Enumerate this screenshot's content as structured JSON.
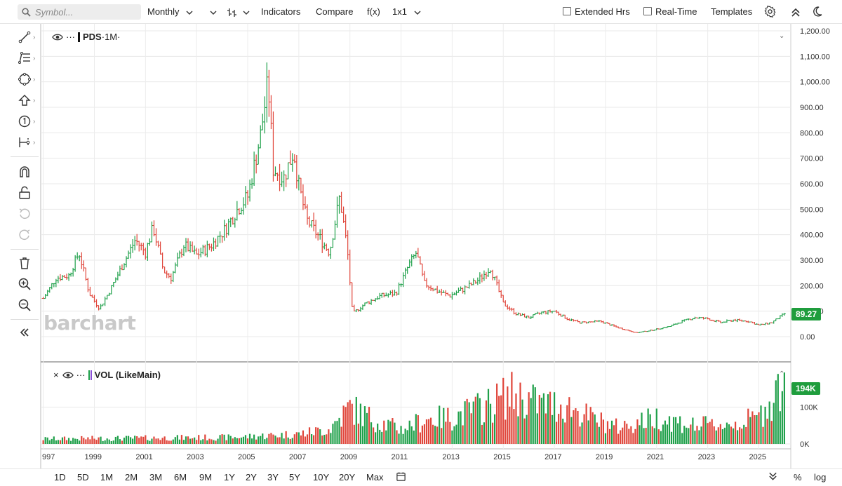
{
  "toolbar": {
    "search_placeholder": "Symbol...",
    "interval": "Monthly",
    "indicators": "Indicators",
    "compare": "Compare",
    "fx": "f(x)",
    "layout": "1x1",
    "extended_hours": "Extended Hrs",
    "real_time": "Real-Time",
    "templates": "Templates"
  },
  "left_tools": [
    {
      "name": "draw-line-icon",
      "has_more": true
    },
    {
      "name": "fib-icon",
      "has_more": true
    },
    {
      "name": "shapes-icon",
      "has_more": true
    },
    {
      "name": "arrow-up-icon",
      "has_more": true
    },
    {
      "name": "annotation-number-icon",
      "has_more": true
    },
    {
      "name": "measure-icon",
      "has_more": true
    },
    {
      "name": "magnet-icon",
      "has_more": false
    },
    {
      "name": "lock-icon",
      "has_more": false
    },
    {
      "name": "undo-icon",
      "has_more": false
    },
    {
      "name": "redo-icon",
      "has_more": false
    },
    {
      "name": "trash-icon",
      "has_more": false
    },
    {
      "name": "zoom-in-icon",
      "has_more": false
    },
    {
      "name": "zoom-out-icon",
      "has_more": false
    },
    {
      "name": "collapse-icon",
      "has_more": false
    }
  ],
  "price_pane": {
    "symbol": "PDS",
    "period": "·1M·",
    "last_price": "89.27",
    "y_ticks": [
      "1,200.00",
      "1,100.00",
      "1,000.00",
      "900.00",
      "800.00",
      "700.00",
      "600.00",
      "500.00",
      "400.00",
      "300.00",
      "200.00",
      "100.00",
      "0.00"
    ]
  },
  "volume_pane": {
    "label": "VOL (LikeMain)",
    "last_volume": "194K",
    "y_ticks": [
      "100K",
      "0K"
    ]
  },
  "x_ticks": [
    "997",
    "1999",
    "2001",
    "2003",
    "2005",
    "2007",
    "2009",
    "2011",
    "2013",
    "2015",
    "2017",
    "2019",
    "2021",
    "2023",
    "2025"
  ],
  "logo": "barchart",
  "ranges": [
    "1D",
    "5D",
    "1M",
    "2M",
    "3M",
    "6M",
    "9M",
    "1Y",
    "2Y",
    "3Y",
    "5Y",
    "10Y",
    "20Y",
    "Max"
  ],
  "bottom_right": {
    "percent": "%",
    "log": "log"
  },
  "colors": {
    "up": "#1fa04a",
    "down": "#e0453a",
    "badge": "#1f9d3d"
  },
  "chart_data": {
    "type": "ohlc",
    "interval": "monthly",
    "ylim": [
      0,
      1200
    ],
    "x_range": [
      "1997",
      "2026"
    ],
    "price_anchors": [
      {
        "t": 1997.0,
        "price": 150
      },
      {
        "t": 1997.5,
        "price": 230
      },
      {
        "t": 1998.0,
        "price": 240
      },
      {
        "t": 1998.4,
        "price": 330
      },
      {
        "t": 1998.8,
        "price": 170
      },
      {
        "t": 1999.2,
        "price": 110
      },
      {
        "t": 1999.6,
        "price": 180
      },
      {
        "t": 2000.0,
        "price": 260
      },
      {
        "t": 2000.6,
        "price": 380
      },
      {
        "t": 2001.0,
        "price": 330
      },
      {
        "t": 2001.3,
        "price": 430
      },
      {
        "t": 2001.7,
        "price": 260
      },
      {
        "t": 2002.0,
        "price": 230
      },
      {
        "t": 2002.5,
        "price": 360
      },
      {
        "t": 2003.0,
        "price": 320
      },
      {
        "t": 2003.6,
        "price": 360
      },
      {
        "t": 2004.1,
        "price": 420
      },
      {
        "t": 2004.6,
        "price": 500
      },
      {
        "t": 2005.0,
        "price": 550
      },
      {
        "t": 2005.5,
        "price": 790
      },
      {
        "t": 2005.8,
        "price": 1000
      },
      {
        "t": 2006.0,
        "price": 660
      },
      {
        "t": 2006.4,
        "price": 620
      },
      {
        "t": 2006.8,
        "price": 730
      },
      {
        "t": 2007.0,
        "price": 590
      },
      {
        "t": 2007.3,
        "price": 460
      },
      {
        "t": 2007.8,
        "price": 390
      },
      {
        "t": 2008.2,
        "price": 330
      },
      {
        "t": 2008.6,
        "price": 550
      },
      {
        "t": 2008.9,
        "price": 340
      },
      {
        "t": 2009.1,
        "price": 90
      },
      {
        "t": 2009.6,
        "price": 130
      },
      {
        "t": 2010.2,
        "price": 160
      },
      {
        "t": 2010.8,
        "price": 170
      },
      {
        "t": 2011.3,
        "price": 280
      },
      {
        "t": 2011.6,
        "price": 330
      },
      {
        "t": 2011.9,
        "price": 210
      },
      {
        "t": 2012.4,
        "price": 180
      },
      {
        "t": 2012.9,
        "price": 160
      },
      {
        "t": 2013.5,
        "price": 190
      },
      {
        "t": 2014.0,
        "price": 220
      },
      {
        "t": 2014.5,
        "price": 270
      },
      {
        "t": 2015.0,
        "price": 130
      },
      {
        "t": 2015.5,
        "price": 90
      },
      {
        "t": 2016.0,
        "price": 75
      },
      {
        "t": 2016.5,
        "price": 95
      },
      {
        "t": 2017.0,
        "price": 100
      },
      {
        "t": 2017.5,
        "price": 70
      },
      {
        "t": 2018.0,
        "price": 55
      },
      {
        "t": 2018.8,
        "price": 60
      },
      {
        "t": 2019.5,
        "price": 35
      },
      {
        "t": 2020.2,
        "price": 15
      },
      {
        "t": 2020.8,
        "price": 25
      },
      {
        "t": 2021.5,
        "price": 40
      },
      {
        "t": 2022.0,
        "price": 60
      },
      {
        "t": 2022.5,
        "price": 75
      },
      {
        "t": 2023.0,
        "price": 70
      },
      {
        "t": 2023.5,
        "price": 55
      },
      {
        "t": 2024.0,
        "price": 65
      },
      {
        "t": 2024.6,
        "price": 60
      },
      {
        "t": 2025.0,
        "price": 45
      },
      {
        "t": 2025.5,
        "price": 55
      },
      {
        "t": 2026.0,
        "price": 89.27
      }
    ],
    "volume_anchors": [
      {
        "t": 1997.0,
        "vol": 15
      },
      {
        "t": 2004.5,
        "vol": 20
      },
      {
        "t": 2007.0,
        "vol": 30
      },
      {
        "t": 2008.2,
        "vol": 45
      },
      {
        "t": 2009.0,
        "vol": 110
      },
      {
        "t": 2010.0,
        "vol": 70
      },
      {
        "t": 2011.0,
        "vol": 45
      },
      {
        "t": 2012.0,
        "vol": 75
      },
      {
        "t": 2013.0,
        "vol": 80
      },
      {
        "t": 2014.5,
        "vol": 120
      },
      {
        "t": 2015.3,
        "vol": 150
      },
      {
        "t": 2016.5,
        "vol": 120
      },
      {
        "t": 2017.5,
        "vol": 115
      },
      {
        "t": 2018.5,
        "vol": 75
      },
      {
        "t": 2019.5,
        "vol": 50
      },
      {
        "t": 2021.0,
        "vol": 80
      },
      {
        "t": 2022.5,
        "vol": 55
      },
      {
        "t": 2024.0,
        "vol": 60
      },
      {
        "t": 2025.0,
        "vol": 80
      },
      {
        "t": 2026.0,
        "vol": 194
      }
    ]
  }
}
